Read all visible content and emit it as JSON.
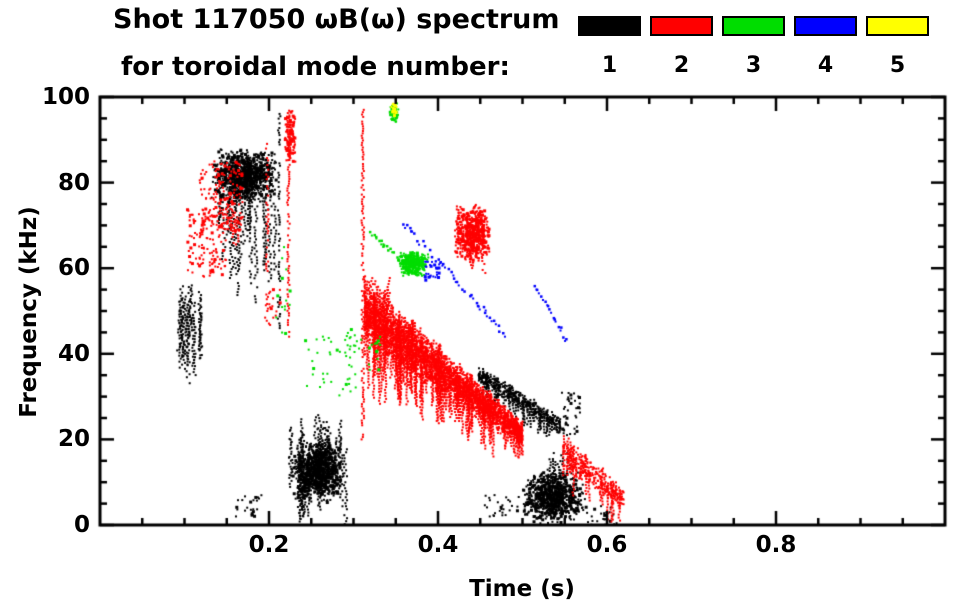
{
  "header": {
    "title_line1": "Shot 117050 ωB(ω) spectrum",
    "title_line2": "for toroidal mode number:",
    "legend": {
      "items": [
        {
          "label": "1",
          "color": "#000000"
        },
        {
          "label": "2",
          "color": "#ff0000"
        },
        {
          "label": "3",
          "color": "#00dd00"
        },
        {
          "label": "4",
          "color": "#0000ff"
        },
        {
          "label": "5",
          "color": "#ffff00"
        }
      ]
    }
  },
  "chart_data": {
    "type": "scatter",
    "title": "Shot 117050 ωB(ω) spectrum for toroidal mode number: 1-5",
    "xlabel": "Time (s)",
    "ylabel": "Frequency (kHz)",
    "xlim": [
      0,
      1
    ],
    "ylim": [
      0,
      100
    ],
    "grid": false,
    "legend_position": "top-right",
    "background": "#ffffff",
    "xticks": [
      {
        "value": 0.2,
        "label": "0.2"
      },
      {
        "value": 0.4,
        "label": "0.4"
      },
      {
        "value": 0.6,
        "label": "0.6"
      },
      {
        "value": 0.8,
        "label": "0.8"
      }
    ],
    "xticks_minor": [
      0.05,
      0.1,
      0.15,
      0.25,
      0.3,
      0.35,
      0.45,
      0.5,
      0.55,
      0.65,
      0.7,
      0.75,
      0.85,
      0.9,
      0.95
    ],
    "yticks": [
      {
        "value": 0,
        "label": "0"
      },
      {
        "value": 20,
        "label": "20"
      },
      {
        "value": 40,
        "label": "40"
      },
      {
        "value": 60,
        "label": "60"
      },
      {
        "value": 80,
        "label": "80"
      },
      {
        "value": 100,
        "label": "100"
      }
    ],
    "yticks_minor": [
      5,
      10,
      15,
      25,
      30,
      35,
      45,
      50,
      55,
      65,
      70,
      75,
      85,
      90,
      95
    ],
    "modes": [
      {
        "n": 1,
        "label": "1",
        "color": "#000000"
      },
      {
        "n": 2,
        "label": "2",
        "color": "#ff0000"
      },
      {
        "n": 3,
        "label": "3",
        "color": "#00dd00"
      },
      {
        "n": 4,
        "label": "4",
        "color": "#0000ff"
      },
      {
        "n": 5,
        "label": "5",
        "color": "#ffff00"
      }
    ],
    "clusters": [
      {
        "mode": 1,
        "type": "vstreaks",
        "t": [
          0.09,
          0.127
        ],
        "ftop": [
          48,
          56
        ],
        "len": [
          8,
          18
        ],
        "n": 16,
        "seed": 1
      },
      {
        "mode": 1,
        "type": "blob",
        "t": [
          0.132,
          0.21
        ],
        "f": [
          75,
          88
        ],
        "n": 1000,
        "seed": 2
      },
      {
        "mode": 1,
        "type": "vstreaks",
        "t": [
          0.14,
          0.21
        ],
        "ftop": [
          74,
          78
        ],
        "len": [
          4,
          24
        ],
        "n": 20,
        "seed": 3
      },
      {
        "mode": 1,
        "type": "vline",
        "t0": 0.212,
        "f": [
          46,
          97
        ],
        "p": 0.5,
        "seed": 4
      },
      {
        "mode": 1,
        "type": "vstreaks",
        "t": [
          0.225,
          0.292
        ],
        "ftop": [
          16,
          26
        ],
        "len": [
          8,
          20
        ],
        "n": 26,
        "seed": 5
      },
      {
        "mode": 1,
        "type": "blob",
        "t": [
          0.228,
          0.29
        ],
        "f": [
          5,
          20
        ],
        "n": 900,
        "seed": 6
      },
      {
        "mode": 1,
        "type": "dots",
        "t": [
          0.16,
          0.192
        ],
        "f": [
          2,
          7
        ],
        "n": 22,
        "seed": 7
      },
      {
        "mode": 1,
        "type": "vline",
        "t0": 0.242,
        "f": [
          2,
          11
        ],
        "p": 0.8,
        "seed": 8
      },
      {
        "mode": 1,
        "type": "band",
        "t": [
          0.448,
          0.545
        ],
        "fstart": 35,
        "fend": 23,
        "w": [
          2.5,
          2
        ],
        "n": 380,
        "streaks": 30,
        "seed": 9
      },
      {
        "mode": 1,
        "type": "dots",
        "t": [
          0.545,
          0.568
        ],
        "f": [
          21,
          31
        ],
        "n": 40,
        "seed": 10
      },
      {
        "mode": 1,
        "type": "blob",
        "t": [
          0.498,
          0.575
        ],
        "f": [
          0,
          13
        ],
        "n": 800,
        "seed": 11
      },
      {
        "mode": 1,
        "type": "dots",
        "t": [
          0.455,
          0.505
        ],
        "f": [
          2,
          7
        ],
        "n": 28,
        "seed": 12
      },
      {
        "mode": 1,
        "type": "dots",
        "t": [
          0.575,
          0.612
        ],
        "f": [
          0,
          5
        ],
        "n": 25,
        "seed": 13
      },
      {
        "mode": 1,
        "type": "vstreaks",
        "t": [
          0.53,
          0.555
        ],
        "ftop": [
          14,
          17
        ],
        "len": [
          4,
          10
        ],
        "n": 6,
        "seed": 14
      },
      {
        "mode": 2,
        "type": "dots",
        "t": [
          0.103,
          0.15
        ],
        "f": [
          58,
          74
        ],
        "n": 130,
        "seed": 15
      },
      {
        "mode": 2,
        "type": "dots",
        "t": [
          0.118,
          0.17
        ],
        "f": [
          68,
          85
        ],
        "n": 160,
        "seed": 16
      },
      {
        "mode": 2,
        "type": "vstreaks",
        "t": [
          0.148,
          0.162
        ],
        "ftop": [
          70,
          76
        ],
        "len": [
          3,
          8
        ],
        "n": 6,
        "seed": 17
      },
      {
        "mode": 2,
        "type": "vline",
        "t0": 0.198,
        "f": [
          50,
          90
        ],
        "p": 0.55,
        "seed": 18
      },
      {
        "mode": 2,
        "type": "vline",
        "t0": 0.223,
        "f": [
          44,
          97
        ],
        "p": 0.75,
        "seed": 19
      },
      {
        "mode": 2,
        "type": "blob",
        "t": [
          0.218,
          0.232
        ],
        "f": [
          84,
          97
        ],
        "n": 120,
        "seed": 20
      },
      {
        "mode": 2,
        "type": "vline",
        "t0": 0.311,
        "f": [
          20,
          97
        ],
        "p": 0.7,
        "seed": 21
      },
      {
        "mode": 2,
        "type": "band",
        "t": [
          0.313,
          0.5
        ],
        "fstart": 50,
        "fend": 21,
        "w": [
          8,
          3
        ],
        "n": 2600,
        "streaks": 130,
        "seed": 22
      },
      {
        "mode": 2,
        "type": "vstreaks",
        "t": [
          0.315,
          0.345
        ],
        "ftop": [
          52,
          58
        ],
        "len": [
          6,
          14
        ],
        "n": 10,
        "seed": 23
      },
      {
        "mode": 2,
        "type": "blob",
        "t": [
          0.42,
          0.462
        ],
        "f": [
          61,
          75
        ],
        "n": 420,
        "seed": 24
      },
      {
        "mode": 2,
        "type": "vstreaks",
        "t": [
          0.422,
          0.46
        ],
        "ftop": [
          70,
          75
        ],
        "len": [
          4,
          12
        ],
        "n": 14,
        "seed": 25
      },
      {
        "mode": 2,
        "type": "band",
        "t": [
          0.548,
          0.62
        ],
        "fstart": 17,
        "fend": 6,
        "w": [
          4,
          3
        ],
        "n": 300,
        "streaks": 15,
        "seed": 26
      },
      {
        "mode": 2,
        "type": "dots",
        "t": [
          0.195,
          0.215
        ],
        "f": [
          45,
          55
        ],
        "n": 18,
        "seed": 27
      },
      {
        "mode": 3,
        "type": "dashline",
        "p1": [
          0.322,
          68
        ],
        "p2": [
          0.36,
          61
        ],
        "n": 16,
        "seed": 28
      },
      {
        "mode": 3,
        "type": "blob",
        "t": [
          0.352,
          0.39
        ],
        "f": [
          58,
          64
        ],
        "n": 300,
        "seed": 29
      },
      {
        "mode": 3,
        "type": "dots",
        "t": [
          0.243,
          0.31
        ],
        "f": [
          30,
          45
        ],
        "n": 40,
        "seed": 30
      },
      {
        "mode": 3,
        "type": "dots",
        "t": [
          0.318,
          0.335
        ],
        "f": [
          36,
          44
        ],
        "n": 14,
        "seed": 31
      },
      {
        "mode": 3,
        "type": "blob",
        "t": [
          0.342,
          0.354
        ],
        "f": [
          94,
          99
        ],
        "n": 60,
        "seed": 32
      },
      {
        "mode": 3,
        "type": "dots",
        "t": [
          0.206,
          0.226
        ],
        "f": [
          44,
          66
        ],
        "n": 14,
        "seed": 33
      },
      {
        "mode": 3,
        "type": "dots",
        "t": [
          0.29,
          0.312
        ],
        "f": [
          39,
          46
        ],
        "n": 12,
        "seed": 34
      },
      {
        "mode": 4,
        "type": "dashline",
        "p1": [
          0.357,
          71
        ],
        "p2": [
          0.478,
          45
        ],
        "n": 30,
        "seed": 35
      },
      {
        "mode": 4,
        "type": "dashline",
        "p1": [
          0.515,
          56
        ],
        "p2": [
          0.553,
          43
        ],
        "n": 12,
        "seed": 36
      },
      {
        "mode": 4,
        "type": "dots",
        "t": [
          0.384,
          0.402
        ],
        "f": [
          57,
          62
        ],
        "n": 30,
        "seed": 37
      },
      {
        "mode": 5,
        "type": "blob",
        "t": [
          0.344,
          0.352
        ],
        "f": [
          95,
          99
        ],
        "n": 25,
        "seed": 38
      }
    ]
  }
}
